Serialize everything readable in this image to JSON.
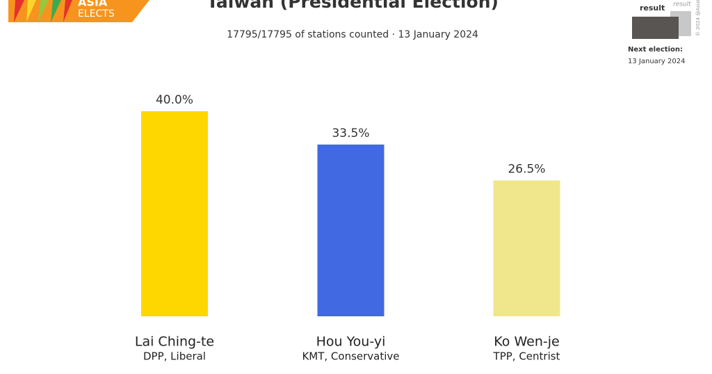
{
  "chart_data": {
    "type": "bar",
    "title": "Taiwan (Presidential Election)",
    "subtitle": "17795/17795 of stations counted · 13 January 2024",
    "categories": [
      "Lai Ching-te",
      "Hou You-yi",
      "Ko Wen-je"
    ],
    "parties": [
      "DPP, Liberal",
      "KMT, Conservative",
      "TPP, Centrist"
    ],
    "values": [
      40.0,
      33.5,
      26.5
    ],
    "value_labels": [
      "40.0%",
      "33.5%",
      "26.5%"
    ],
    "colors": [
      "#ffd700",
      "#4169e1",
      "#f0e68c"
    ]
  },
  "logo": {
    "line1": "ASIA",
    "line2": "ELECTS"
  },
  "legend": {
    "current": "result",
    "previous": "result"
  },
  "next_election": {
    "label": "Next election:",
    "date": "13 January 2024"
  },
  "credit": "© 2024 @AsiaElects"
}
